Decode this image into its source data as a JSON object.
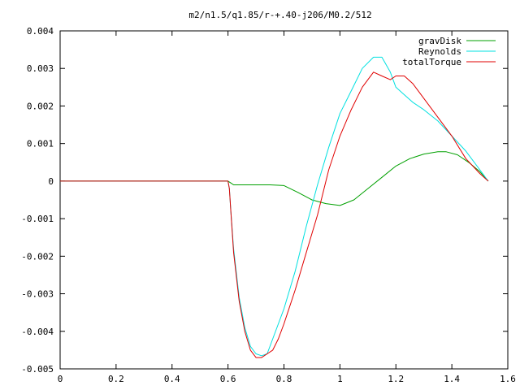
{
  "chart_data": {
    "type": "line",
    "title": "m2/n1.5/q1.85/r-+.40-j206/M0.2/512",
    "xlabel": "",
    "ylabel": "",
    "xlim": [
      0,
      1.6
    ],
    "ylim": [
      -0.005,
      0.004
    ],
    "xticks": [
      "0",
      "0.2",
      "0.4",
      "0.6",
      "0.8",
      "1",
      "1.2",
      "1.4",
      "1.6"
    ],
    "yticks": [
      "0.004",
      "0.003",
      "0.002",
      "0.001",
      "0",
      "-0.001",
      "-0.002",
      "-0.003",
      "-0.004",
      "-0.005"
    ],
    "grid": false,
    "legend_position": "top-right",
    "series": [
      {
        "name": "gravDisk",
        "color": "#00a000",
        "x": [
          0,
          0.6,
          0.61,
          0.62,
          0.65,
          0.7,
          0.75,
          0.8,
          0.85,
          0.9,
          0.95,
          1.0,
          1.05,
          1.1,
          1.15,
          1.2,
          1.25,
          1.3,
          1.35,
          1.38,
          1.42,
          1.46,
          1.5,
          1.53
        ],
        "values": [
          0,
          0,
          -5e-05,
          -0.0001,
          -0.0001,
          -0.0001,
          -0.0001,
          -0.00012,
          -0.0003,
          -0.0005,
          -0.0006,
          -0.00065,
          -0.0005,
          -0.0002,
          0.0001,
          0.0004,
          0.0006,
          0.00072,
          0.00078,
          0.00078,
          0.0007,
          0.0005,
          0.00025,
          0.0
        ]
      },
      {
        "name": "Reynolds",
        "color": "#00e0e0",
        "x": [
          0,
          0.6,
          0.605,
          0.61,
          0.62,
          0.64,
          0.66,
          0.68,
          0.7,
          0.72,
          0.74,
          0.76,
          0.78,
          0.8,
          0.84,
          0.88,
          0.92,
          0.96,
          1.0,
          1.04,
          1.08,
          1.12,
          1.15,
          1.18,
          1.2,
          1.23,
          1.26,
          1.3,
          1.35,
          1.4,
          1.45,
          1.5,
          1.53
        ],
        "values": [
          0,
          0,
          -0.0002,
          -0.0008,
          -0.0018,
          -0.0031,
          -0.0039,
          -0.0044,
          -0.0046,
          -0.00465,
          -0.0046,
          -0.0042,
          -0.0038,
          -0.0034,
          -0.0024,
          -0.0012,
          -0.0001,
          0.0009,
          0.0018,
          0.0024,
          0.003,
          0.0033,
          0.0033,
          0.0029,
          0.0025,
          0.0023,
          0.0021,
          0.0019,
          0.0016,
          0.0012,
          0.0008,
          0.0003,
          0.0
        ]
      },
      {
        "name": "totalTorque",
        "color": "#e00000",
        "x": [
          0,
          0.6,
          0.605,
          0.61,
          0.62,
          0.64,
          0.66,
          0.68,
          0.7,
          0.72,
          0.74,
          0.76,
          0.78,
          0.8,
          0.84,
          0.88,
          0.92,
          0.96,
          1.0,
          1.04,
          1.08,
          1.12,
          1.15,
          1.18,
          1.2,
          1.23,
          1.26,
          1.3,
          1.35,
          1.4,
          1.45,
          1.5,
          1.53
        ],
        "values": [
          0,
          0,
          -0.0002,
          -0.0008,
          -0.0019,
          -0.0032,
          -0.004,
          -0.0045,
          -0.0047,
          -0.0047,
          -0.0046,
          -0.0045,
          -0.0042,
          -0.0038,
          -0.0029,
          -0.0019,
          -0.0009,
          0.0003,
          0.0012,
          0.0019,
          0.0025,
          0.0029,
          0.0028,
          0.0027,
          0.0028,
          0.0028,
          0.0026,
          0.0022,
          0.0017,
          0.0012,
          0.0006,
          0.0002,
          0.0
        ]
      }
    ]
  }
}
